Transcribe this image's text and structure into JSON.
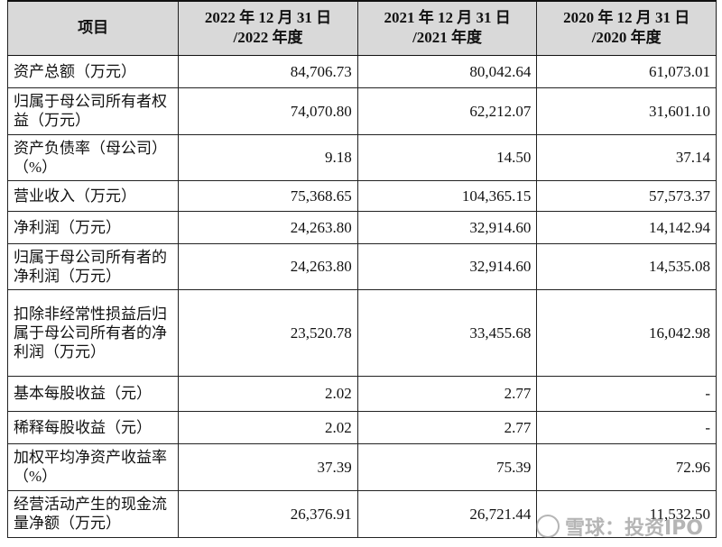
{
  "table": {
    "header": {
      "item": "项目",
      "cols": [
        {
          "line1": "2022 年 12 月 31 日",
          "line2": "/2022 年度"
        },
        {
          "line1": "2021 年 12 月 31 日",
          "line2": "/2021 年度"
        },
        {
          "line1": "2020 年 12 月 31 日",
          "line2": "/2020 年度"
        }
      ]
    },
    "rows": [
      {
        "label": "资产总额（万元）",
        "v1": "84,706.73",
        "v2": "80,042.64",
        "v3": "61,073.01"
      },
      {
        "label": "归属于母公司所有者权益（万元）",
        "v1": "74,070.80",
        "v2": "62,212.07",
        "v3": "31,601.10"
      },
      {
        "label": "资产负债率（母公司）（%）",
        "v1": "9.18",
        "v2": "14.50",
        "v3": "37.14"
      },
      {
        "label": "营业收入（万元）",
        "v1": "75,368.65",
        "v2": "104,365.15",
        "v3": "57,573.37"
      },
      {
        "label": "净利润（万元）",
        "v1": "24,263.80",
        "v2": "32,914.60",
        "v3": "14,142.94"
      },
      {
        "label": "归属于母公司所有者的净利润（万元）",
        "v1": "24,263.80",
        "v2": "32,914.60",
        "v3": "14,535.08"
      },
      {
        "label": "扣除非经常性损益后归属于母公司所有者的净利润（万元）",
        "v1": "23,520.78",
        "v2": "33,455.68",
        "v3": "16,042.98"
      },
      {
        "label": "基本每股收益（元）",
        "v1": "2.02",
        "v2": "2.77",
        "v3": "-"
      },
      {
        "label": "稀释每股收益（元）",
        "v1": "2.02",
        "v2": "2.77",
        "v3": "-"
      },
      {
        "label": "加权平均净资产收益率（%）",
        "v1": "37.39",
        "v2": "75.39",
        "v3": "72.96"
      },
      {
        "label": "经营活动产生的现金流量净额（万元）",
        "v1": "26,376.91",
        "v2": "26,721.44",
        "v3": "11,532.50"
      }
    ]
  },
  "watermark": {
    "text": "雪球：投资IPO"
  }
}
